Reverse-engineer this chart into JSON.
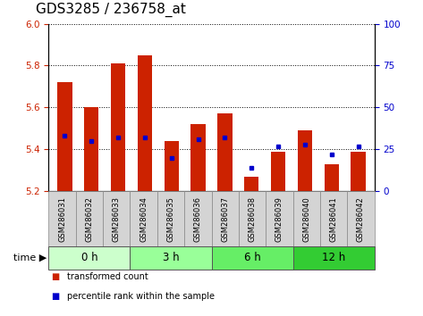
{
  "title": "GDS3285 / 236758_at",
  "samples": [
    "GSM286031",
    "GSM286032",
    "GSM286033",
    "GSM286034",
    "GSM286035",
    "GSM286036",
    "GSM286037",
    "GSM286038",
    "GSM286039",
    "GSM286040",
    "GSM286041",
    "GSM286042"
  ],
  "transformed_count": [
    5.72,
    5.6,
    5.81,
    5.85,
    5.44,
    5.52,
    5.57,
    5.27,
    5.39,
    5.49,
    5.33,
    5.39
  ],
  "percentile_rank": [
    33,
    30,
    32,
    32,
    20,
    31,
    32,
    14,
    27,
    28,
    22,
    27
  ],
  "groups": [
    {
      "label": "0 h",
      "start": 0,
      "end": 3,
      "color": "#ccffcc"
    },
    {
      "label": "3 h",
      "start": 3,
      "end": 6,
      "color": "#99ff99"
    },
    {
      "label": "6 h",
      "start": 6,
      "end": 9,
      "color": "#66ee66"
    },
    {
      "label": "12 h",
      "start": 9,
      "end": 12,
      "color": "#33cc33"
    }
  ],
  "ylim_left": [
    5.2,
    6.0
  ],
  "ylim_right": [
    0,
    100
  ],
  "yticks_left": [
    5.2,
    5.4,
    5.6,
    5.8,
    6.0
  ],
  "yticks_right": [
    0,
    25,
    50,
    75,
    100
  ],
  "bar_color": "#cc2200",
  "marker_color": "#0000cc",
  "bar_bottom": 5.2,
  "title_fontsize": 11,
  "tick_fontsize": 7.5,
  "background_color": "#ffffff"
}
